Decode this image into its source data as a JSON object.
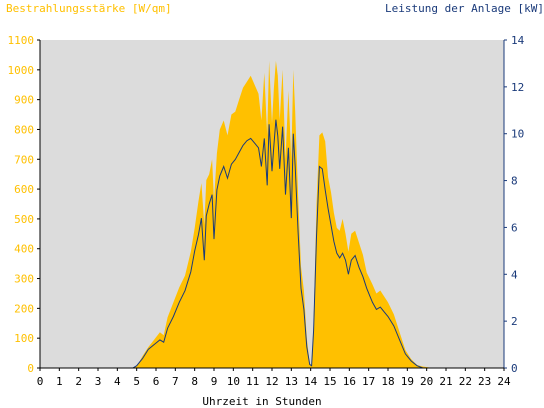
{
  "chart_data": {
    "type": "area",
    "title_left": "Bestrahlungsstärke [W/qm]",
    "title_right": "Leistung der Anlage [kW]",
    "xlabel": "Uhrzeit in Stunden",
    "xlim": [
      0,
      24
    ],
    "ylim_left": [
      0,
      1100
    ],
    "ylim_right": [
      0,
      14
    ],
    "x_ticks": [
      "0",
      "1",
      "2",
      "3",
      "4",
      "5",
      "6",
      "7",
      "8",
      "9",
      "10",
      "11",
      "12",
      "13",
      "14",
      "15",
      "16",
      "17",
      "18",
      "19",
      "20",
      "21",
      "22",
      "23",
      "24"
    ],
    "y_left_ticks": [
      "0",
      "100",
      "200",
      "300",
      "400",
      "500",
      "600",
      "700",
      "800",
      "900",
      "1000",
      "1100"
    ],
    "y_right_ticks": [
      "0",
      "2",
      "4",
      "6",
      "8",
      "10",
      "12",
      "14"
    ],
    "colors": {
      "plot_bg": "#dcdcdc",
      "irradiance": "#ffc000",
      "power": "#1a3a7a",
      "axis": "#000000"
    },
    "series": [
      {
        "key": "irradiance",
        "axis": "left",
        "x": [
          0,
          4.8,
          5.0,
          5.3,
          5.6,
          5.9,
          6.2,
          6.4,
          6.6,
          6.9,
          7.2,
          7.5,
          7.8,
          8.0,
          8.2,
          8.35,
          8.5,
          8.6,
          8.75,
          8.9,
          9.0,
          9.15,
          9.3,
          9.5,
          9.7,
          9.9,
          10.1,
          10.3,
          10.5,
          10.7,
          10.9,
          11.1,
          11.3,
          11.45,
          11.6,
          11.75,
          11.85,
          12.0,
          12.1,
          12.2,
          12.3,
          12.4,
          12.55,
          12.7,
          12.85,
          13.0,
          13.1,
          13.2,
          13.35,
          13.5,
          13.65,
          13.8,
          13.95,
          14.05,
          14.15,
          14.3,
          14.45,
          14.6,
          14.75,
          14.9,
          15.05,
          15.2,
          15.35,
          15.5,
          15.65,
          15.8,
          15.95,
          16.1,
          16.3,
          16.5,
          16.7,
          16.9,
          17.05,
          17.2,
          17.4,
          17.6,
          17.8,
          18.0,
          18.3,
          18.6,
          18.9,
          19.2,
          19.5,
          19.8,
          20.1,
          20.4,
          20.7,
          21.0,
          24
        ],
        "y": [
          0,
          0,
          5,
          40,
          70,
          95,
          120,
          110,
          170,
          220,
          270,
          310,
          390,
          470,
          560,
          620,
          480,
          630,
          650,
          700,
          560,
          720,
          800,
          830,
          780,
          850,
          860,
          900,
          940,
          960,
          980,
          950,
          920,
          830,
          990,
          780,
          1030,
          820,
          940,
          1030,
          980,
          830,
          1000,
          700,
          930,
          700,
          1000,
          860,
          580,
          340,
          260,
          100,
          15,
          10,
          150,
          550,
          780,
          790,
          760,
          640,
          590,
          520,
          470,
          460,
          500,
          450,
          390,
          450,
          460,
          420,
          380,
          320,
          300,
          280,
          250,
          260,
          240,
          220,
          180,
          120,
          60,
          30,
          10,
          5,
          2,
          0,
          0,
          0,
          0
        ],
        "values": [
          0,
          0,
          5,
          40,
          70,
          95,
          120,
          110,
          170,
          220,
          270,
          310,
          390,
          470,
          560,
          620,
          480,
          630,
          650,
          700,
          560,
          720,
          800,
          830,
          780,
          850,
          860,
          900,
          940,
          960,
          980,
          950,
          920,
          830,
          990,
          780,
          1030,
          820,
          940,
          1030,
          980,
          830,
          1000,
          700,
          930,
          700,
          1000,
          860,
          580,
          340,
          260,
          100,
          15,
          10,
          150,
          550,
          780,
          790,
          760,
          640,
          590,
          520,
          470,
          460,
          500,
          450,
          390,
          450,
          460,
          420,
          380,
          320,
          300,
          280,
          250,
          260,
          240,
          220,
          180,
          120,
          60,
          30,
          10,
          5,
          2,
          0,
          0,
          0,
          0
        ]
      },
      {
        "key": "power",
        "axis": "right",
        "x": [
          0,
          4.8,
          5.0,
          5.3,
          5.6,
          5.9,
          6.2,
          6.4,
          6.6,
          6.9,
          7.2,
          7.5,
          7.8,
          8.0,
          8.2,
          8.35,
          8.5,
          8.6,
          8.75,
          8.9,
          9.0,
          9.15,
          9.3,
          9.5,
          9.7,
          9.9,
          10.1,
          10.3,
          10.5,
          10.7,
          10.9,
          11.1,
          11.3,
          11.45,
          11.6,
          11.75,
          11.85,
          12.0,
          12.1,
          12.2,
          12.3,
          12.4,
          12.55,
          12.7,
          12.85,
          13.0,
          13.1,
          13.2,
          13.35,
          13.5,
          13.65,
          13.8,
          13.95,
          14.05,
          14.15,
          14.3,
          14.45,
          14.6,
          14.75,
          14.9,
          15.05,
          15.2,
          15.35,
          15.5,
          15.65,
          15.8,
          15.95,
          16.1,
          16.3,
          16.5,
          16.7,
          16.9,
          17.05,
          17.2,
          17.4,
          17.6,
          17.8,
          18.0,
          18.3,
          18.6,
          18.9,
          19.2,
          19.5,
          19.8,
          20.1,
          20.4,
          20.7,
          21.0,
          24
        ],
        "y": [
          0,
          0,
          0.1,
          0.4,
          0.8,
          1.0,
          1.2,
          1.1,
          1.7,
          2.2,
          2.8,
          3.3,
          4.1,
          5.0,
          5.7,
          6.4,
          4.6,
          6.5,
          7.0,
          7.4,
          5.5,
          7.6,
          8.2,
          8.6,
          8.1,
          8.7,
          8.9,
          9.2,
          9.5,
          9.7,
          9.8,
          9.6,
          9.4,
          8.6,
          9.8,
          7.8,
          10.4,
          8.4,
          9.5,
          10.6,
          9.9,
          8.5,
          10.3,
          7.4,
          9.4,
          6.4,
          10.0,
          8.6,
          5.8,
          3.4,
          2.5,
          0.9,
          0.15,
          0.1,
          1.6,
          5.6,
          8.6,
          8.5,
          7.6,
          6.8,
          6.1,
          5.4,
          4.9,
          4.7,
          4.9,
          4.6,
          4.0,
          4.6,
          4.8,
          4.3,
          3.9,
          3.4,
          3.1,
          2.8,
          2.5,
          2.6,
          2.4,
          2.2,
          1.8,
          1.2,
          0.6,
          0.3,
          0.1,
          0,
          0,
          0,
          0,
          0,
          0
        ],
        "values": [
          0,
          0,
          0.1,
          0.4,
          0.8,
          1.0,
          1.2,
          1.1,
          1.7,
          2.2,
          2.8,
          3.3,
          4.1,
          5.0,
          5.7,
          6.4,
          4.6,
          6.5,
          7.0,
          7.4,
          5.5,
          7.6,
          8.2,
          8.6,
          8.1,
          8.7,
          8.9,
          9.2,
          9.5,
          9.7,
          9.8,
          9.6,
          9.4,
          8.6,
          9.8,
          7.8,
          10.4,
          8.4,
          9.5,
          10.6,
          9.9,
          8.5,
          10.3,
          7.4,
          9.4,
          6.4,
          10.0,
          8.6,
          5.8,
          3.4,
          2.5,
          0.9,
          0.15,
          0.1,
          1.6,
          5.6,
          8.6,
          8.5,
          7.6,
          6.8,
          6.1,
          5.4,
          4.9,
          4.7,
          4.9,
          4.6,
          4.0,
          4.6,
          4.8,
          4.3,
          3.9,
          3.4,
          3.1,
          2.8,
          2.5,
          2.6,
          2.4,
          2.2,
          1.8,
          1.2,
          0.6,
          0.3,
          0.1,
          0,
          0,
          0,
          0,
          0,
          0
        ]
      }
    ]
  }
}
